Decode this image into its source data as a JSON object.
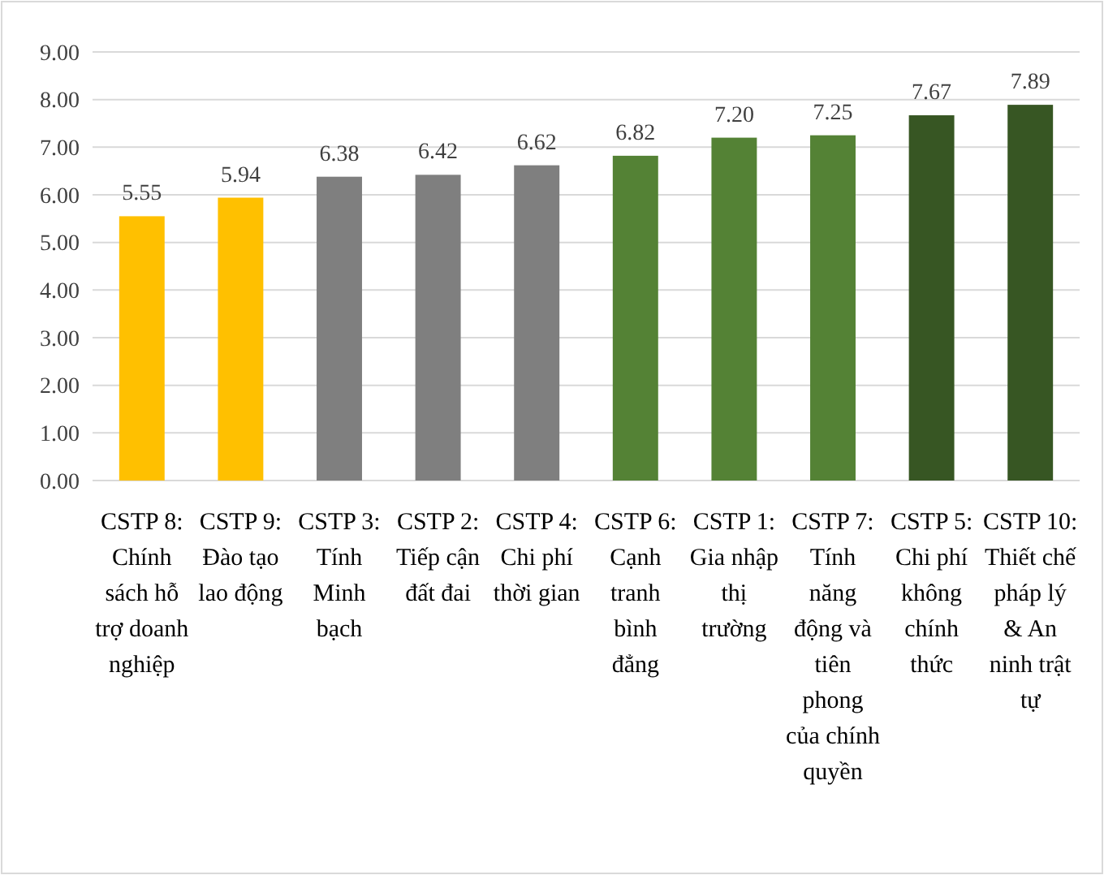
{
  "chart_data": {
    "type": "bar",
    "categories": [
      "CSTP 8: Chính sách hỗ trợ doanh nghiệp",
      "CSTP 9: Đào tạo lao động",
      "CSTP 3: Tính Minh bạch",
      "CSTP 2: Tiếp cận đất đai",
      "CSTP 4: Chi phí thời gian",
      "CSTP 6: Cạnh tranh bình đẳng",
      "CSTP 1: Gia nhập thị trường",
      "CSTP 7: Tính năng động và tiên phong của chính quyền",
      "CSTP 5: Chi phí không chính thức",
      "CSTP 10: Thiết chế pháp lý & An ninh trật tự"
    ],
    "values": [
      5.55,
      5.94,
      6.38,
      6.42,
      6.62,
      6.82,
      7.2,
      7.25,
      7.67,
      7.89
    ],
    "value_labels": [
      "5.55",
      "5.94",
      "6.38",
      "6.42",
      "6.62",
      "6.82",
      "7.20",
      "7.25",
      "7.67",
      "7.89"
    ],
    "colors": [
      "#ffc000",
      "#ffc000",
      "#7f7f7f",
      "#7f7f7f",
      "#7f7f7f",
      "#548235",
      "#548235",
      "#548235",
      "#375623",
      "#375623"
    ],
    "ylim": [
      0,
      9
    ],
    "yticks": [
      {
        "value": 0,
        "label": "0.00"
      },
      {
        "value": 1,
        "label": "1.00"
      },
      {
        "value": 2,
        "label": "2.00"
      },
      {
        "value": 3,
        "label": "3.00"
      },
      {
        "value": 4,
        "label": "4.00"
      },
      {
        "value": 5,
        "label": "5.00"
      },
      {
        "value": 6,
        "label": "6.00"
      },
      {
        "value": 7,
        "label": "7.00"
      },
      {
        "value": 8,
        "label": "8.00"
      },
      {
        "value": 9,
        "label": "9.00"
      }
    ],
    "grid": "y"
  }
}
